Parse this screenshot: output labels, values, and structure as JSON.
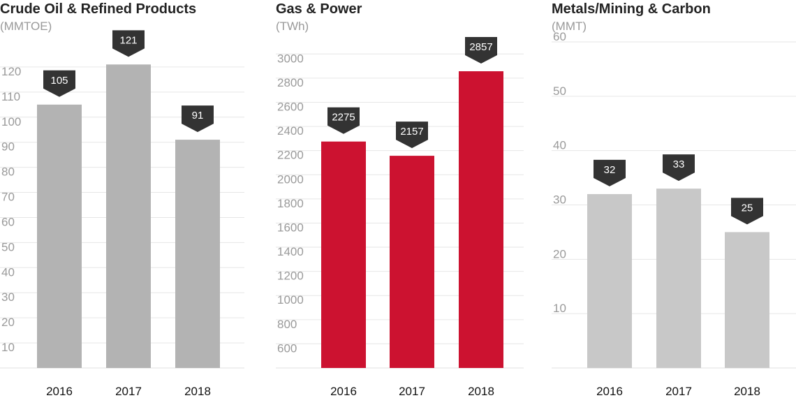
{
  "chart_data": [
    {
      "type": "bar",
      "title": "Crude Oil & Refined Products",
      "ylabel": "(MMTOE)",
      "categories": [
        "2016",
        "2017",
        "2018"
      ],
      "values": [
        105,
        121,
        91
      ],
      "ylim": [
        0,
        130
      ],
      "yticks": [
        10,
        20,
        30,
        40,
        50,
        60,
        70,
        80,
        90,
        100,
        110,
        120
      ],
      "bar_color": "#b3b3b3",
      "label_color": "#333333",
      "grid": true
    },
    {
      "type": "bar",
      "title": "Gas & Power",
      "ylabel": "(TWh)",
      "categories": [
        "2016",
        "2017",
        "2018"
      ],
      "values": [
        2275,
        2157,
        2857
      ],
      "ylim": [
        400,
        3100
      ],
      "yticks": [
        600,
        800,
        1000,
        1200,
        1400,
        1600,
        1800,
        2000,
        2200,
        2400,
        2600,
        2800,
        3000
      ],
      "bar_color": "#cc1230",
      "label_color": "#333333",
      "grid": true
    },
    {
      "type": "bar",
      "title": "Metals/Mining & Carbon",
      "ylabel": "(MMT)",
      "categories": [
        "2016",
        "2017",
        "2018"
      ],
      "values": [
        32,
        33,
        25
      ],
      "ylim": [
        0,
        60
      ],
      "yticks": [
        10,
        20,
        30,
        40,
        50,
        60
      ],
      "bar_color": "#c8c8c8",
      "label_color": "#333333",
      "grid": true
    }
  ]
}
